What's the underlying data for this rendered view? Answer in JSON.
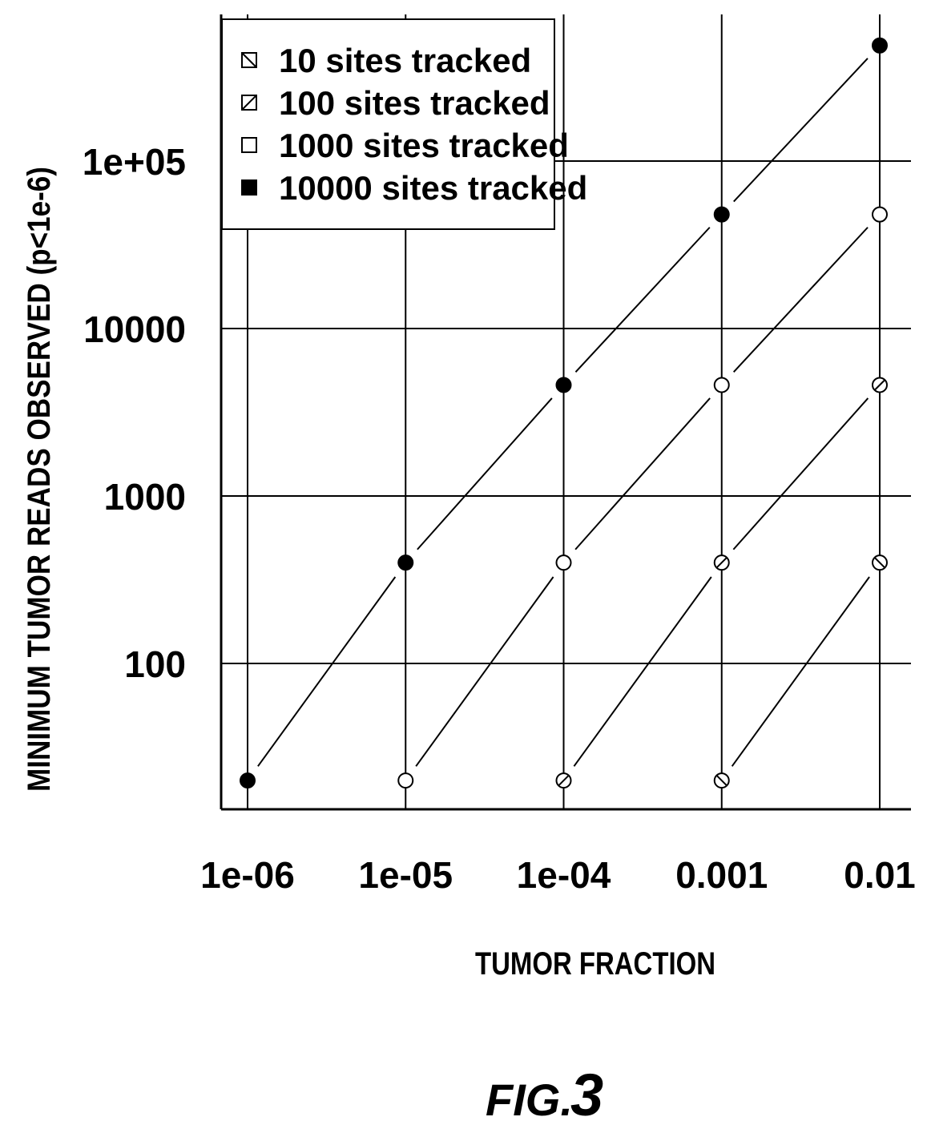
{
  "chart_data": {
    "type": "scatter",
    "log_x": true,
    "log_y": true,
    "x": [
      1e-06,
      1e-05,
      0.0001,
      0.001,
      0.01
    ],
    "xlim": [
      1e-06,
      0.01
    ],
    "ylim": [
      13,
      800000
    ],
    "grid": true,
    "legend_position": "top-left",
    "xlabel": "TUMOR FRACTION",
    "ylabel": "MINIMUM TUMOR READS OBSERVED (p<1e-6)",
    "x_tick_labels": [
      "1e-06",
      "1e-05",
      "1e-04",
      "0.001",
      "0.01"
    ],
    "y_ticks": [
      100,
      1000,
      10000,
      100000
    ],
    "y_tick_labels": [
      "100",
      "1000",
      "10000",
      "1e+05"
    ],
    "series": [
      {
        "name": "10 sites tracked",
        "marker": "hatch-back",
        "x": [
          0.001,
          0.01
        ],
        "values": [
          20,
          400
        ]
      },
      {
        "name": "100 sites tracked",
        "marker": "hatch-forward",
        "x": [
          0.0001,
          0.001,
          0.01
        ],
        "values": [
          20,
          400,
          4600
        ]
      },
      {
        "name": "1000 sites tracked",
        "marker": "open",
        "x": [
          1e-05,
          0.0001,
          0.001,
          0.01
        ],
        "values": [
          20,
          400,
          4600,
          48000
        ]
      },
      {
        "name": "10000 sites tracked",
        "marker": "filled",
        "x": [
          1e-06,
          1e-05,
          0.0001,
          0.001,
          0.01
        ],
        "values": [
          20,
          400,
          4600,
          48000,
          490000
        ]
      }
    ]
  },
  "figure_label": {
    "prefix": "FIG.",
    "number": "3"
  }
}
